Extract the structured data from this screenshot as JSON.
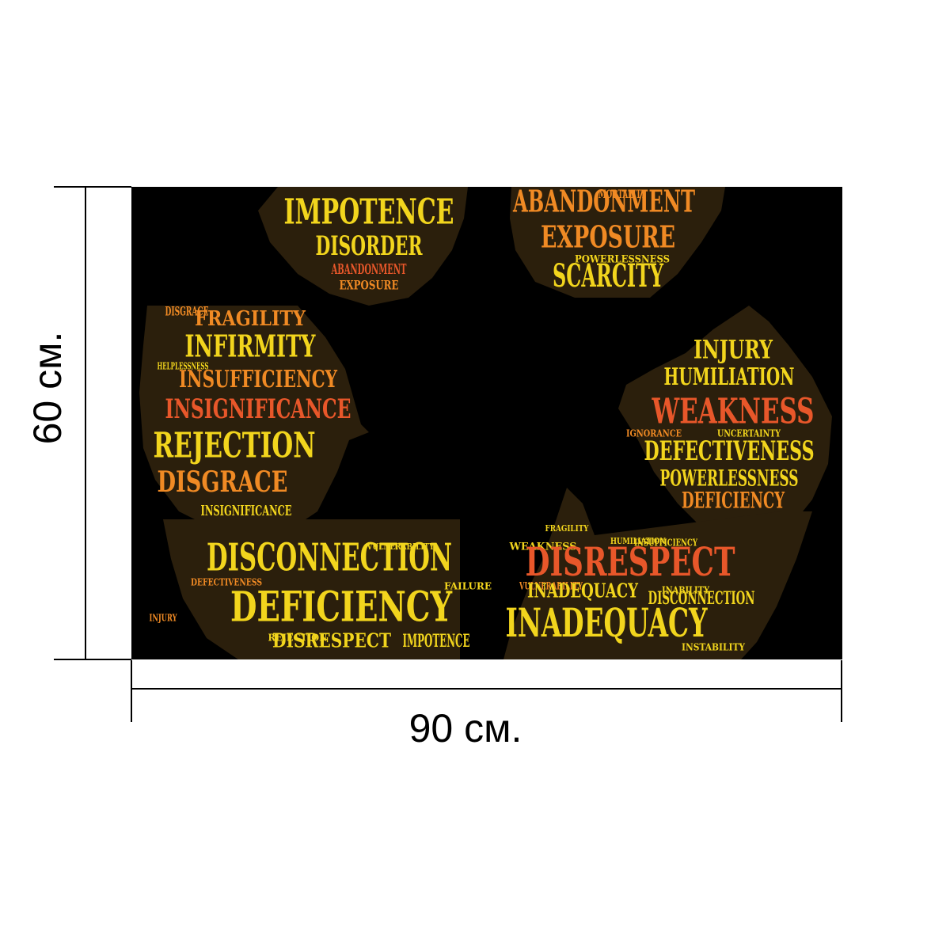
{
  "dimensions": {
    "height_label": "60 см.",
    "width_label": "90 см."
  },
  "colors": {
    "background": "#000000",
    "yellow": "#f2d51d",
    "orange": "#f08a24",
    "red_orange": "#e8572a",
    "shape_fill": "#3a2a12"
  },
  "word_cloud": {
    "words": [
      {
        "text": "IMPOTENCE",
        "color": "#f2d51d"
      },
      {
        "text": "DISORDER",
        "color": "#f2d51d"
      },
      {
        "text": "ABANDONMENT",
        "color": "#f08a24"
      },
      {
        "text": "EXPOSURE",
        "color": "#f08a24"
      },
      {
        "text": "ABANDONMENT",
        "color": "#e8572a"
      },
      {
        "text": "EXPOSURE",
        "color": "#f08a24"
      },
      {
        "text": "SCARCITY",
        "color": "#f2d51d"
      },
      {
        "text": "MORTALITY",
        "color": "#f08a24"
      },
      {
        "text": "POWERLESSNESS",
        "color": "#f2d51d"
      },
      {
        "text": "FRAGILITY",
        "color": "#f08a24"
      },
      {
        "text": "DISGRACE",
        "color": "#f08a24"
      },
      {
        "text": "INFIRMITY",
        "color": "#f2d51d"
      },
      {
        "text": "INSUFFICIENCY",
        "color": "#f08a24"
      },
      {
        "text": "INSIGNIFICANCE",
        "color": "#e8572a"
      },
      {
        "text": "REJECTION",
        "color": "#f2d51d"
      },
      {
        "text": "DISGRACE",
        "color": "#f08a24"
      },
      {
        "text": "INSIGNIFICANCE",
        "color": "#f2d51d"
      },
      {
        "text": "INJURY",
        "color": "#f2d51d"
      },
      {
        "text": "HUMILIATION",
        "color": "#f2d51d"
      },
      {
        "text": "WEAKNESS",
        "color": "#e8572a"
      },
      {
        "text": "DEFECTIVENESS",
        "color": "#f2d51d"
      },
      {
        "text": "POWERLESSNESS",
        "color": "#f2d51d"
      },
      {
        "text": "DEFICIENCY",
        "color": "#f08a24"
      },
      {
        "text": "DISCONNECTION",
        "color": "#f2d51d"
      },
      {
        "text": "DEFICIENCY",
        "color": "#f2d51d"
      },
      {
        "text": "DISRESPECT",
        "color": "#f2d51d"
      },
      {
        "text": "IMPOTENCE",
        "color": "#f2d51d"
      },
      {
        "text": "DISRESPECT",
        "color": "#e8572a"
      },
      {
        "text": "INADEQUACY",
        "color": "#f2d51d"
      },
      {
        "text": "DISCONNECTION",
        "color": "#f2d51d"
      },
      {
        "text": "INADEQUACY",
        "color": "#f2d51d"
      }
    ],
    "small_words": [
      {
        "text": "VULNERABILITY",
        "color": "#f08a24"
      },
      {
        "text": "WEAKNESS",
        "color": "#f2d51d"
      },
      {
        "text": "FAILURE",
        "color": "#f2d51d"
      },
      {
        "text": "UNCERTAINTY",
        "color": "#f2d51d"
      },
      {
        "text": "DEFECTIVENESS",
        "color": "#f08a24"
      },
      {
        "text": "HELPLESSNESS",
        "color": "#f2d51d"
      },
      {
        "text": "IGNORANCE",
        "color": "#f08a24"
      },
      {
        "text": "INSTABILITY",
        "color": "#f2d51d"
      },
      {
        "text": "REJECTION",
        "color": "#f2d51d"
      },
      {
        "text": "INJURY",
        "color": "#f08a24"
      },
      {
        "text": "INSUFFICIENCY",
        "color": "#f2d51d"
      },
      {
        "text": "INABILITY",
        "color": "#f2d51d"
      },
      {
        "text": "VULNERABILITY",
        "color": "#f2d51d"
      },
      {
        "text": "HUMILIATION",
        "color": "#f2d51d"
      },
      {
        "text": "FRAGILITY",
        "color": "#f2d51d"
      }
    ]
  }
}
